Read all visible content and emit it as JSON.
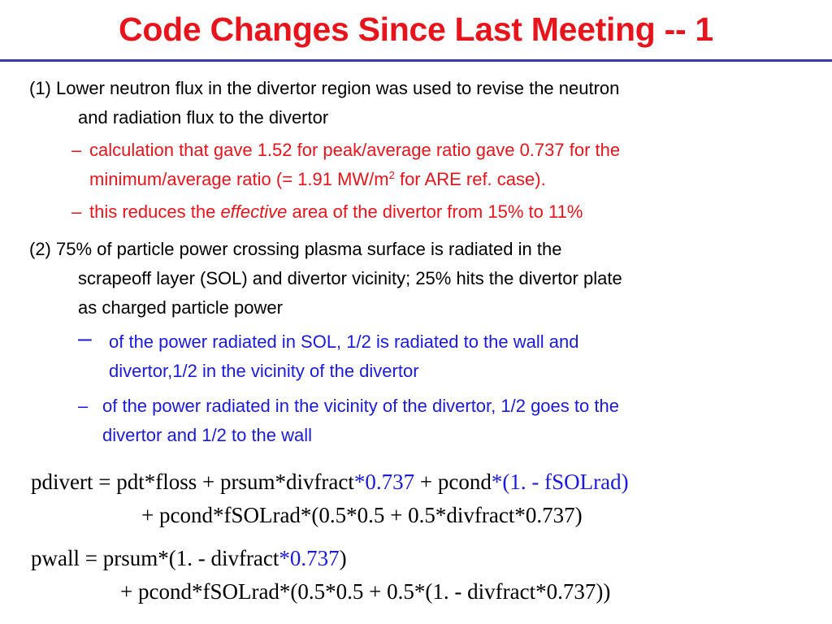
{
  "title": "Code Changes Since Last Meeting -- 1",
  "colors": {
    "title": "#e8141b",
    "rule": "#3a39a8",
    "red": "#e8141b",
    "blue": "#1a1adf"
  },
  "item1": {
    "line1": "(1) Lower neutron flux in the divertor region was used to revise the neutron",
    "line2": "and radiation flux to the divertor",
    "sub1": {
      "dash": "–",
      "line1": "calculation that gave 1.52 for peak/average ratio gave 0.737 for the",
      "line2_pre": "minimum/average ratio (= 1.91 MW/m",
      "line2_sup": "2",
      "line2_post": " for ARE ref. case)."
    },
    "sub2": {
      "dash": "–",
      "pre": "this reduces the ",
      "em": "effective",
      "post": " area of the divertor from 15% to 11%"
    }
  },
  "item2": {
    "line1": "(2) 75% of particle power crossing plasma surface is radiated in the",
    "line2": "scrapeoff layer (SOL) and divertor vicinity; 25% hits the divertor plate",
    "line3": "as charged particle power",
    "sub1": {
      "dash": "–",
      "line1": "of the power radiated in SOL, 1/2 is radiated to the wall and",
      "line2": "divertor,1/2 in the vicinity of the divertor"
    },
    "sub2": {
      "dash": "–",
      "line1": "of the power radiated in the vicinity of the divertor, 1/2 goes to the",
      "line2": "divertor and 1/2 to the wall"
    }
  },
  "eq1": {
    "a": "pdivert = pdt*floss + prsum*divfract",
    "b": "*0.737",
    "c": " + pcond",
    "d": "*(1. - fSOLrad)",
    "line2": "+ pcond*fSOLrad*(0.5*0.5 + 0.5*divfract*0.737)"
  },
  "eq2": {
    "a": "pwall = prsum*(1. - divfract",
    "b": "*0.737",
    "c": ")",
    "line2": "+ pcond*fSOLrad*(0.5*0.5 + 0.5*(1. - divfract*0.737))"
  }
}
